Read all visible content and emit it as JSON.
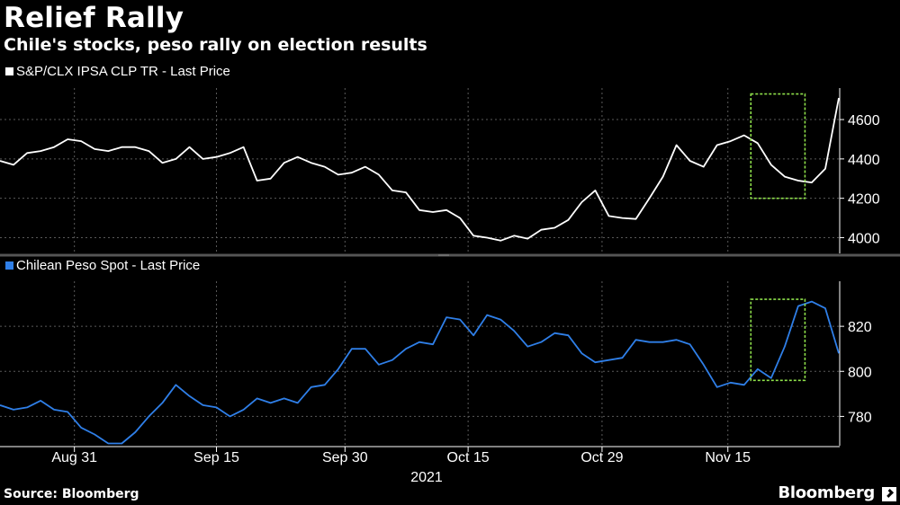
{
  "header": {
    "title": "Relief Rally",
    "subtitle": "Chile's stocks, peso rally on election results"
  },
  "footer": {
    "source": "Source: Bloomberg",
    "brand": "Bloomberg"
  },
  "colors": {
    "background": "#000000",
    "stocks_line": "#ffffff",
    "peso_line": "#2f7fe8",
    "highlight_box": "#8ee04a",
    "grid": "#5a5a5a"
  },
  "chart_data": [
    {
      "type": "line",
      "legend": "S&P/CLX IPSA CLP TR - Last Price",
      "legend_placement": "top-left",
      "ylim": [
        3920,
        4760
      ],
      "yticks": [
        4000,
        4200,
        4400,
        4600
      ],
      "ytick_labels": [
        "4000",
        "4200",
        "4400",
        "4600"
      ],
      "grid": true,
      "highlight": {
        "x_from": 55.5,
        "x_to": 59.5,
        "y_from": 4200,
        "y_to": 4730
      },
      "series": [
        {
          "values": [
            4390,
            4370,
            4430,
            4440,
            4460,
            4500,
            4490,
            4450,
            4440,
            4460,
            4460,
            4440,
            4380,
            4400,
            4460,
            4400,
            4410,
            4430,
            4460,
            4290,
            4300,
            4380,
            4410,
            4380,
            4360,
            4320,
            4330,
            4360,
            4320,
            4240,
            4230,
            4140,
            4130,
            4140,
            4100,
            4010,
            4000,
            3985,
            4010,
            3995,
            4040,
            4050,
            4090,
            4180,
            4240,
            4110,
            4100,
            4095,
            4200,
            4310,
            4470,
            4390,
            4360,
            4470,
            4490,
            4520,
            4480,
            4370,
            4310,
            4290,
            4280,
            4350,
            4710
          ]
        }
      ]
    },
    {
      "type": "line",
      "legend": "Chilean Peso Spot - Last Price",
      "legend_placement": "top-left",
      "ylim": [
        767,
        840
      ],
      "yticks": [
        780,
        800,
        820
      ],
      "ytick_labels": [
        "780",
        "800",
        "820"
      ],
      "grid": true,
      "highlight": {
        "x_from": 55.5,
        "x_to": 59.5,
        "y_from": 796,
        "y_to": 832
      },
      "series": [
        {
          "values": [
            785,
            783,
            784,
            787,
            783,
            782,
            775,
            772,
            768,
            768,
            773,
            780,
            786,
            794,
            789,
            785,
            784,
            780,
            783,
            788,
            786,
            788,
            786,
            793,
            794,
            801,
            810,
            810,
            803,
            805,
            810,
            813,
            812,
            824,
            823,
            816,
            825,
            823,
            818,
            811,
            813,
            817,
            816,
            808,
            804,
            805,
            806,
            814,
            813,
            813,
            814,
            812,
            803,
            793,
            795,
            794,
            801,
            797,
            811,
            829,
            831,
            828,
            808
          ]
        }
      ]
    }
  ],
  "shared_x": {
    "count": 63,
    "tick_labels": [
      "Aug 31",
      "Sep 15",
      "Sep 30",
      "Oct 15",
      "Oct 29",
      "Nov 15"
    ],
    "tick_positions": [
      5.5,
      16,
      25.5,
      34.6,
      44.5,
      53.8
    ],
    "year_label": "2021"
  }
}
